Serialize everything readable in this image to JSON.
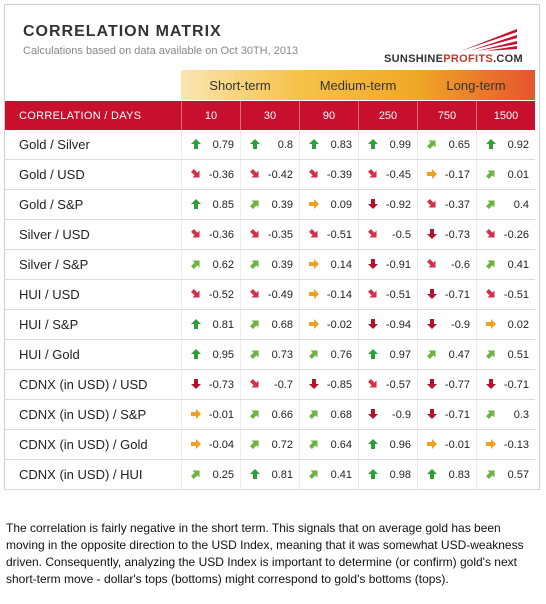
{
  "header": {
    "title": "CORRELATION MATRIX",
    "subtitle": "Calculations based on data available on Oct 30TH, 2013",
    "logo_main": "SUNSHINE",
    "logo_accent": "PROFITS",
    "logo_suffix": ".COM"
  },
  "terms": {
    "short": "Short-term",
    "medium": "Medium-term",
    "long": "Long-term"
  },
  "table": {
    "corner_label": "CORRELATION / DAYS",
    "days": [
      "10",
      "30",
      "90",
      "250",
      "750",
      "1500"
    ],
    "rows": [
      {
        "label": "Gold / Silver",
        "values": [
          "0.79",
          "0.8",
          "0.83",
          "0.99",
          "0.65",
          "0.92"
        ],
        "dirs": [
          "up",
          "up",
          "up",
          "up",
          "upright",
          "up"
        ]
      },
      {
        "label": "Gold / USD",
        "values": [
          "-0.36",
          "-0.42",
          "-0.39",
          "-0.45",
          "-0.17",
          "0.01"
        ],
        "dirs": [
          "downright",
          "downright",
          "downright",
          "downright",
          "right",
          "upright"
        ]
      },
      {
        "label": "Gold / S&P",
        "values": [
          "0.85",
          "0.39",
          "0.09",
          "-0.92",
          "-0.37",
          "0.4"
        ],
        "dirs": [
          "up",
          "upright",
          "right",
          "down",
          "downright",
          "upright"
        ]
      },
      {
        "label": "Silver / USD",
        "values": [
          "-0.36",
          "-0.35",
          "-0.51",
          "-0.5",
          "-0.73",
          "-0.26"
        ],
        "dirs": [
          "downright",
          "downright",
          "downright",
          "downright",
          "down",
          "downright"
        ]
      },
      {
        "label": "Silver / S&P",
        "values": [
          "0.62",
          "0.39",
          "0.14",
          "-0.91",
          "-0.6",
          "0.41"
        ],
        "dirs": [
          "upright",
          "upright",
          "right",
          "down",
          "downright",
          "upright"
        ]
      },
      {
        "label": "HUI / USD",
        "values": [
          "-0.52",
          "-0.49",
          "-0.14",
          "-0.51",
          "-0.71",
          "-0.51"
        ],
        "dirs": [
          "downright",
          "downright",
          "right",
          "downright",
          "down",
          "downright"
        ]
      },
      {
        "label": "HUI / S&P",
        "values": [
          "0.81",
          "0.68",
          "-0.02",
          "-0.94",
          "-0.9",
          "0.02"
        ],
        "dirs": [
          "up",
          "upright",
          "right",
          "down",
          "down",
          "right"
        ]
      },
      {
        "label": "HUI / Gold",
        "values": [
          "0.95",
          "0.73",
          "0.76",
          "0.97",
          "0.47",
          "0.51"
        ],
        "dirs": [
          "up",
          "upright",
          "upright",
          "up",
          "upright",
          "upright"
        ]
      },
      {
        "label": "CDNX (in USD) / USD",
        "values": [
          "-0.73",
          "-0.7",
          "-0.85",
          "-0.57",
          "-0.77",
          "-0.71"
        ],
        "dirs": [
          "down",
          "downright",
          "down",
          "downright",
          "down",
          "down"
        ]
      },
      {
        "label": "CDNX (in USD) / S&P",
        "values": [
          "-0.01",
          "0.66",
          "0.68",
          "-0.9",
          "-0.71",
          "0.3"
        ],
        "dirs": [
          "right",
          "upright",
          "upright",
          "down",
          "down",
          "upright"
        ]
      },
      {
        "label": "CDNX (in USD) / Gold",
        "values": [
          "-0.04",
          "0.72",
          "0.64",
          "0.96",
          "-0.01",
          "-0.13"
        ],
        "dirs": [
          "right",
          "upright",
          "upright",
          "up",
          "right",
          "right"
        ]
      },
      {
        "label": "CDNX (in USD) / HUI",
        "values": [
          "0.25",
          "0.81",
          "0.41",
          "0.98",
          "0.83",
          "0.57"
        ],
        "dirs": [
          "upright",
          "up",
          "upright",
          "up",
          "up",
          "upright"
        ]
      }
    ]
  },
  "arrow_colors": {
    "up": "#2e9e3a",
    "upright": "#6db33f",
    "right": "#f0a020",
    "downright": "#d4304a",
    "down": "#b3132b"
  },
  "note": "The correlation is fairly negative in the short term. This signals that on average gold has been moving in the opposite direction to the USD Index, meaning that it was somewhat USD-weakness driven. Consequently, analyzing the USD Index is important to determine (or confirm) gold's next short-term move - dollar's tops (bottoms) might correspond to gold's bottoms (tops)."
}
